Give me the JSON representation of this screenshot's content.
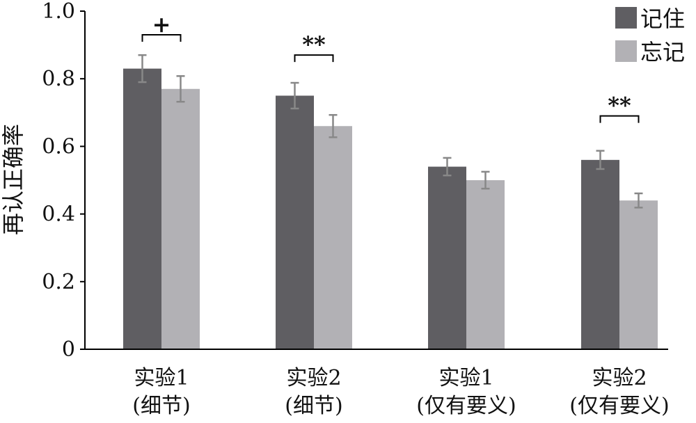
{
  "chart_data": {
    "type": "bar",
    "title": "",
    "xlabel": "",
    "ylabel": "再认正确率",
    "ylim": [
      0,
      1.0
    ],
    "yticks": [
      {
        "value": 0,
        "label": "0"
      },
      {
        "value": 0.2,
        "label": "0.2"
      },
      {
        "value": 0.4,
        "label": "0.4"
      },
      {
        "value": 0.6,
        "label": "0.6"
      },
      {
        "value": 0.8,
        "label": "0.8"
      },
      {
        "value": 1.0,
        "label": "1.0"
      }
    ],
    "categories": [
      {
        "line1": "实验1",
        "line2": "(细节)"
      },
      {
        "line1": "实验2",
        "line2": "(细节)"
      },
      {
        "line1": "实验1",
        "line2": "(仅有要义)"
      },
      {
        "line1": "实验2",
        "line2": "(仅有要义)"
      }
    ],
    "series": [
      {
        "name": "记住",
        "color": "#5f5e62",
        "values": [
          0.83,
          0.75,
          0.54,
          0.56
        ],
        "errors": [
          0.04,
          0.038,
          0.026,
          0.027
        ]
      },
      {
        "name": "忘记",
        "color": "#b2b1b5",
        "values": [
          0.77,
          0.66,
          0.5,
          0.44
        ],
        "errors": [
          0.038,
          0.033,
          0.025,
          0.021
        ]
      }
    ],
    "significance": [
      {
        "category": 0,
        "label": "+",
        "y": 0.93
      },
      {
        "category": 1,
        "label": "**",
        "y": 0.87
      },
      {
        "category": 3,
        "label": "**",
        "y": 0.69
      }
    ],
    "grid": false,
    "legend": "top-right",
    "axis_color": "#000000",
    "errorbar_color": "#888888"
  }
}
